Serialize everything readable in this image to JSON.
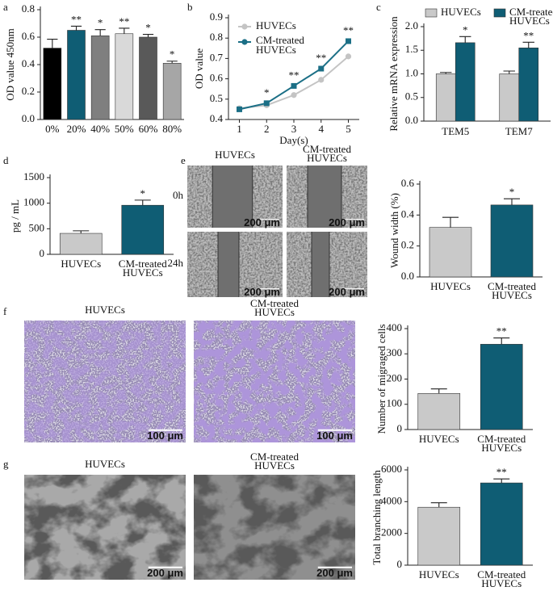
{
  "chart_data": [
    {
      "panel_label": "a",
      "type": "bar",
      "categories": [
        "0%",
        "20%",
        "40%",
        "50%",
        "60%",
        "80%"
      ],
      "y_label": "OD value 450nm",
      "ylim": [
        0,
        0.8
      ],
      "yticks": [
        {
          "value": 0,
          "label": "0.0"
        },
        0.2,
        0.4,
        0.6,
        0.8
      ],
      "series": [
        {
          "colors": [
            "#000000",
            "#0f5d74",
            "#7f7f7f",
            "#d9d9d9",
            "#595959",
            "#a6a6a6"
          ],
          "values": [
            0.52,
            0.65,
            0.61,
            0.625,
            0.6,
            0.41
          ],
          "errors": [
            0.065,
            0.03,
            0.045,
            0.04,
            0.02,
            0.015
          ],
          "significance": [
            null,
            "**",
            "*",
            "**",
            "*",
            "*"
          ]
        }
      ]
    },
    {
      "panel_label": "b",
      "type": "line",
      "x": [
        1,
        2,
        3,
        4,
        5
      ],
      "xlim": [
        0.6,
        5.4
      ],
      "xticks": [
        1,
        2,
        3,
        4,
        5
      ],
      "x_label": "Day(s)",
      "y_label": "OD value",
      "ylim": [
        0.4,
        0.9
      ],
      "yticks": [
        0.4,
        0.5,
        0.6,
        0.7,
        0.8,
        0.9
      ],
      "legend": "upper left",
      "series": [
        {
          "name": "HUVECs",
          "color": "#c4c4c4",
          "values": [
            0.455,
            0.47,
            0.52,
            0.595,
            0.71
          ]
        },
        {
          "name": "CM-treated HUVECs",
          "color": "#1b6f86",
          "values": [
            0.45,
            0.48,
            0.565,
            0.65,
            0.785
          ]
        }
      ],
      "significance": [
        null,
        "*",
        "**",
        "**",
        "**"
      ]
    },
    {
      "panel_label": "c",
      "type": "bar",
      "categories": [
        "TEM5",
        "TEM7"
      ],
      "y_label": "Relative mRNA expression",
      "ylim": [
        0,
        2
      ],
      "yticks": [
        {
          "value": 0,
          "label": "0.0"
        },
        0.5,
        {
          "value": 1,
          "label": "1.0"
        },
        1.5,
        {
          "value": 2,
          "label": "2.0"
        }
      ],
      "legend": "top",
      "series": [
        {
          "name": "HUVECs",
          "color": "#c9c9c9",
          "values": [
            1.0,
            1.0
          ],
          "errors": [
            0.03,
            0.06
          ],
          "significance": [
            null,
            null
          ]
        },
        {
          "name": "CM-treated HUVECs",
          "color": "#0f5d74",
          "values": [
            1.66,
            1.55
          ],
          "errors": [
            0.13,
            0.12
          ],
          "significance": [
            "*",
            "**"
          ]
        }
      ]
    },
    {
      "panel_label": "d",
      "type": "bar",
      "categories": [
        "HUVECs",
        "CM-treated HUVECs"
      ],
      "y_label": "pg / mL",
      "ylim": [
        0,
        1500
      ],
      "yticks": [
        0,
        500,
        1000,
        1500
      ],
      "series": [
        {
          "colors": [
            "#c9c9c9",
            "#0f5d74"
          ],
          "values": [
            410,
            960
          ],
          "errors": [
            50,
            100
          ],
          "significance": [
            null,
            "*"
          ]
        }
      ]
    },
    {
      "type": "bar",
      "categories": [
        "HUVECs",
        "CM-treated HUVECs"
      ],
      "y_label": "Wound width (%)",
      "ylim": [
        0,
        0.6
      ],
      "yticks": [
        {
          "value": 0,
          "label": "0.0"
        },
        0.2,
        0.4,
        0.6
      ],
      "series": [
        {
          "colors": [
            "#c9c9c9",
            "#0f5d74"
          ],
          "values": [
            0.32,
            0.465
          ],
          "errors": [
            0.065,
            0.04
          ],
          "significance": [
            null,
            "*"
          ]
        }
      ]
    },
    {
      "type": "bar",
      "categories": [
        "HUVECs",
        "CM-treated HUVECs"
      ],
      "y_label": "Number of migraged cells",
      "ylim": [
        0,
        400
      ],
      "yticks": [
        0,
        100,
        200,
        300,
        400
      ],
      "series": [
        {
          "colors": [
            "#c9c9c9",
            "#0f5d74"
          ],
          "values": [
            143,
            338
          ],
          "errors": [
            18,
            25
          ],
          "significance": [
            null,
            "**"
          ]
        }
      ]
    },
    {
      "type": "bar",
      "categories": [
        "HUVECs",
        "CM-treated HUVECs"
      ],
      "y_label": "Total branching length",
      "ylim": [
        0,
        6000
      ],
      "yticks": [
        0,
        2000,
        4000,
        6000
      ],
      "series": [
        {
          "colors": [
            "#c9c9c9",
            "#0f5d74"
          ],
          "values": [
            3650,
            5180
          ],
          "errors": [
            280,
            250
          ],
          "significance": [
            null,
            "**"
          ]
        }
      ]
    }
  ],
  "micrographs": [
    {
      "panel_label": "e",
      "column_labels": [
        "HUVECs",
        "CM-treated HUVECs"
      ],
      "row_labels": [
        "0h",
        "24h"
      ],
      "scale_bars": [
        "200 μm",
        "200 μm",
        "200 μm",
        "200 μm"
      ]
    },
    {
      "panel_label": "f",
      "column_labels": [
        "HUVECs",
        "CM-treated HUVECs"
      ],
      "scale_bars": [
        "100 μm",
        "100 μm"
      ]
    },
    {
      "panel_label": "g",
      "column_labels": [
        "HUVECs",
        "CM-treated HUVECs"
      ],
      "scale_bars": [
        "200 μm",
        "200 μm"
      ]
    }
  ]
}
